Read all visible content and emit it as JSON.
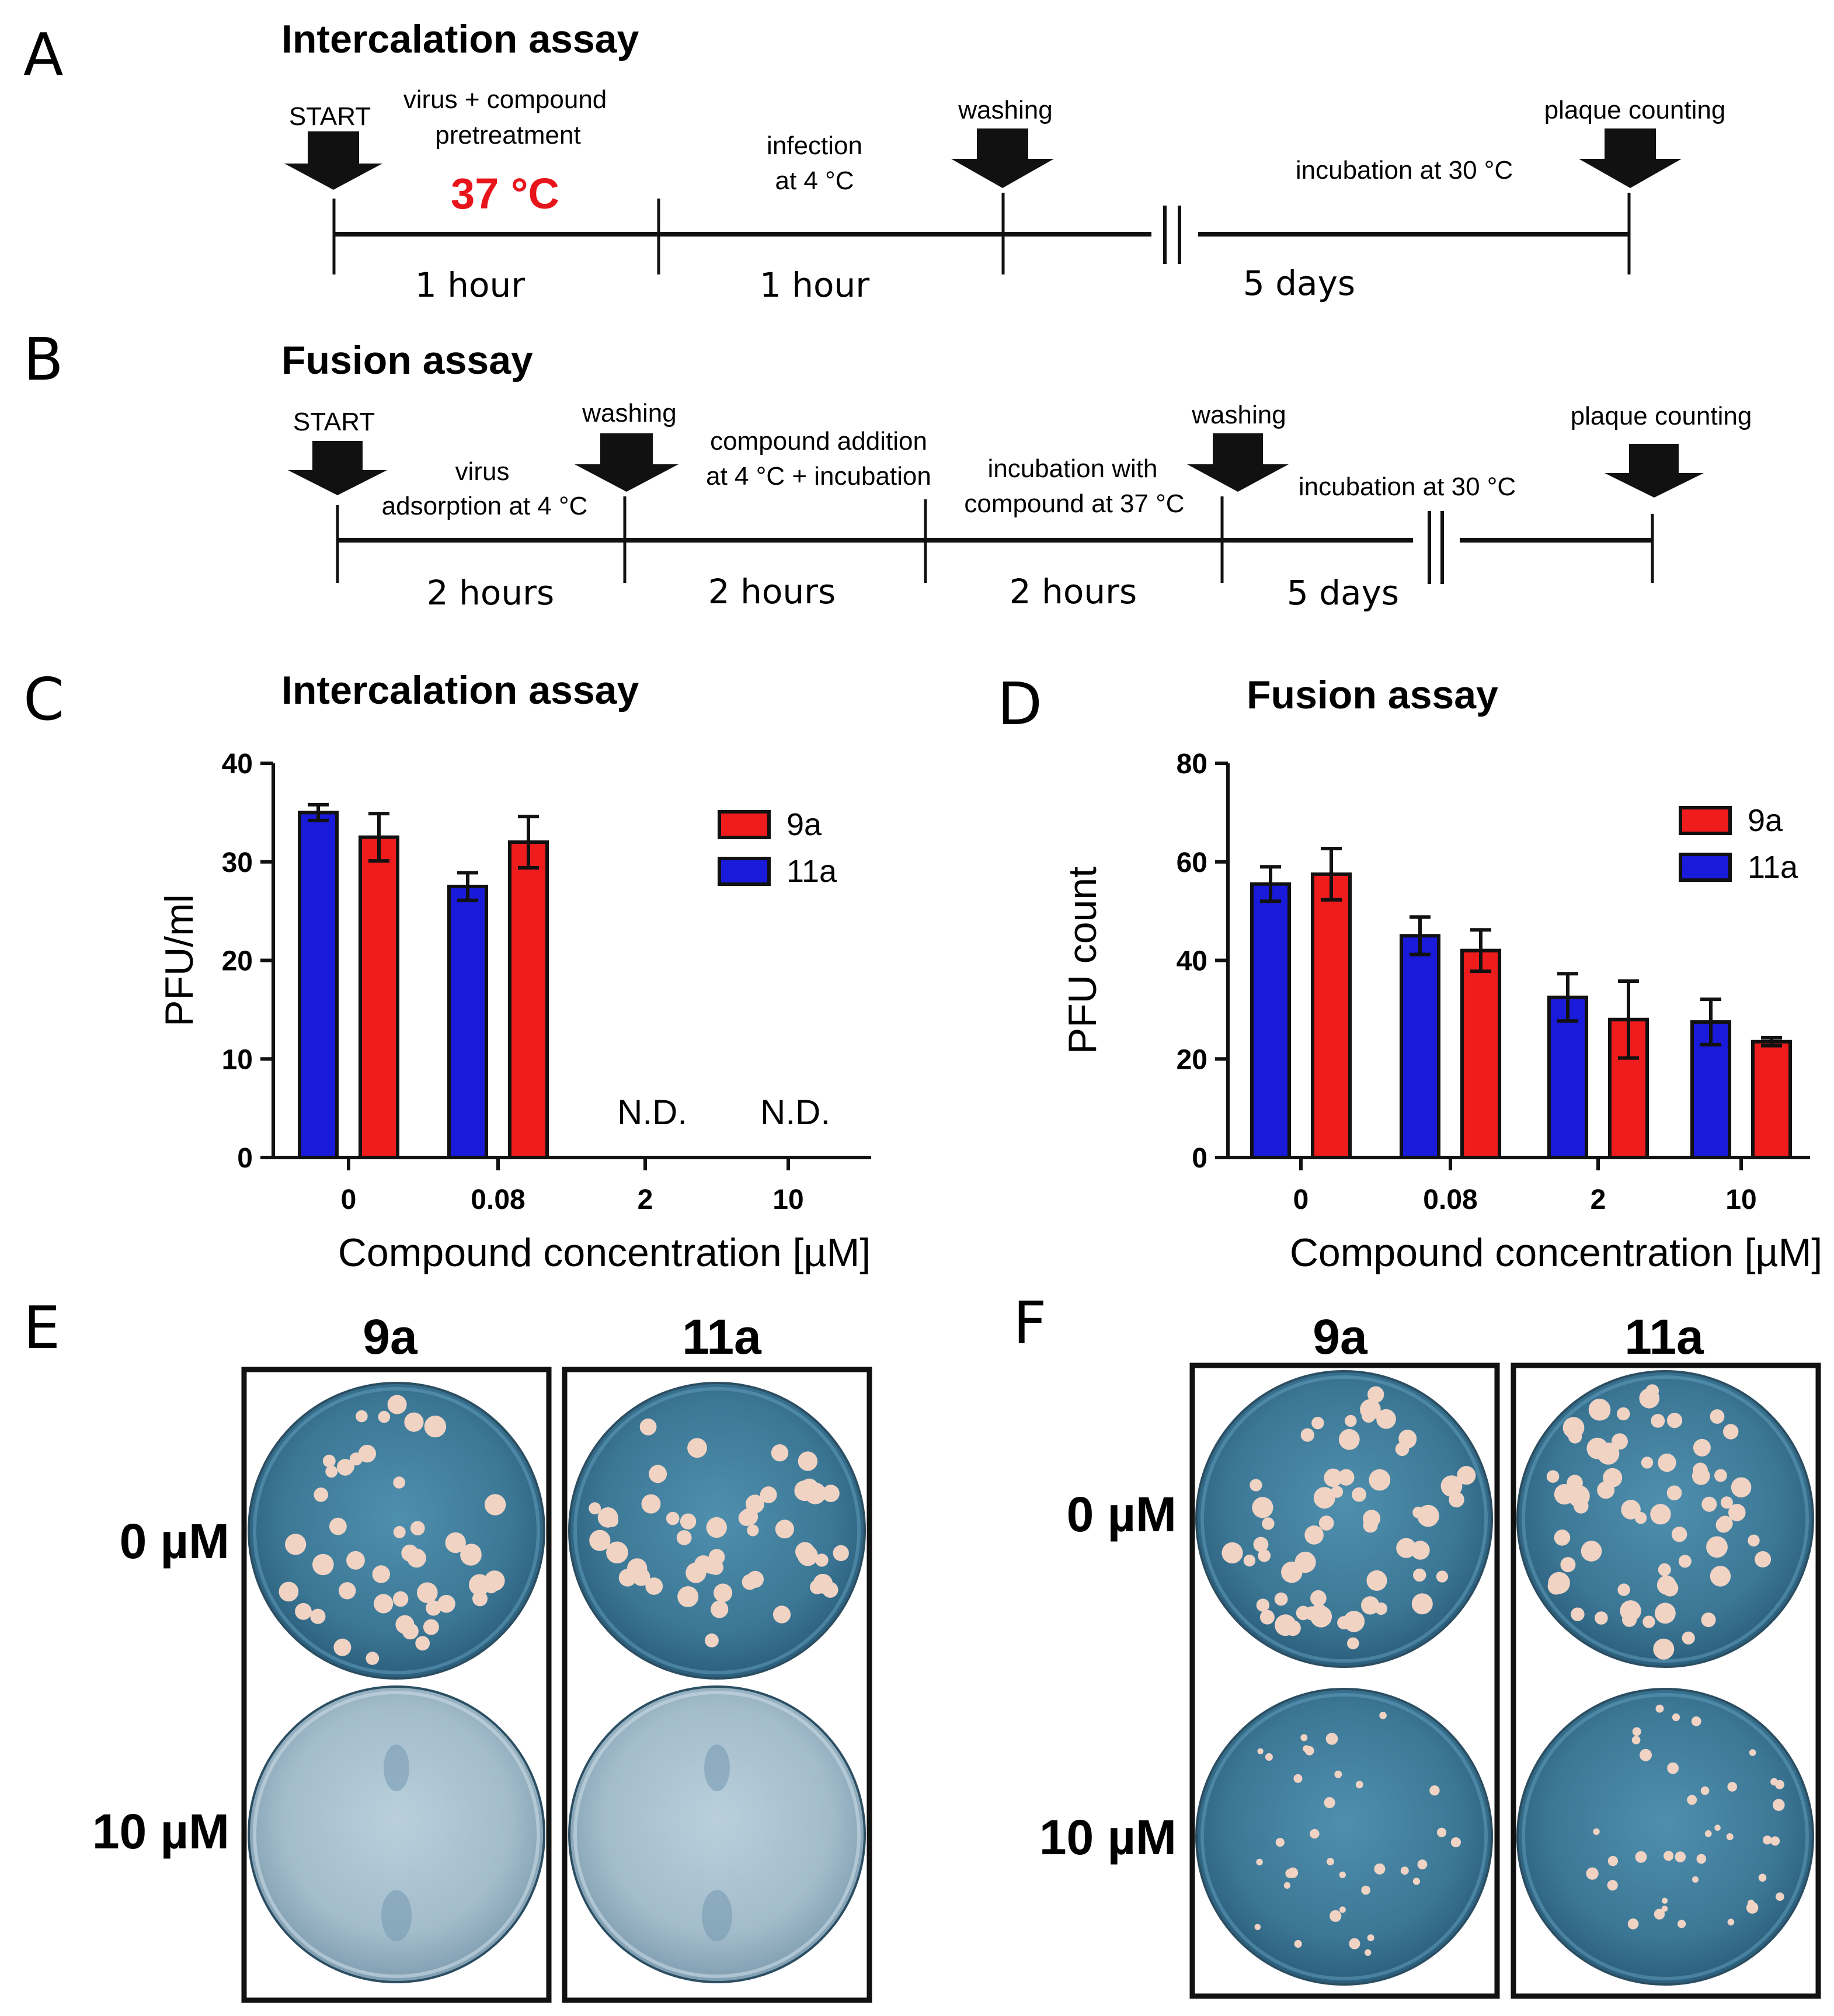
{
  "colors": {
    "red": "#ee1c1c",
    "blue": "#1a1adb",
    "dish": "#3f7fa0",
    "accent": "#e8141b"
  },
  "panels": {
    "A": {
      "letter": "A",
      "title": "Intercalation assay",
      "labels": {
        "start": "START",
        "pretreat1": "virus + compound",
        "pretreat2": "pretreatment",
        "temp": "37 °C",
        "infection1": "infection",
        "infection2": "at 4 °C",
        "washing": "washing",
        "incubation": "incubation at 30 °C",
        "plaque": "plaque counting"
      },
      "durations": [
        "1 hour",
        "1 hour",
        "5 days"
      ]
    },
    "B": {
      "letter": "B",
      "title": "Fusion assay",
      "labels": {
        "start": "START",
        "adsorb1": "virus",
        "adsorb2": "adsorption at 4 °C",
        "washing1": "washing",
        "addition1": "compound addition",
        "addition2": "at 4 °C + incubation",
        "incwith1": "incubation with",
        "incwith2": "compound at 37 °C",
        "washing2": "washing",
        "incubation": "incubation at 30 °C",
        "plaque": "plaque counting"
      },
      "durations": [
        "2 hours",
        "2 hours",
        "2 hours",
        "5 days"
      ]
    },
    "C": {
      "letter": "C",
      "title": "Intercalation assay",
      "nd": "N.D."
    },
    "D": {
      "letter": "D",
      "title": "Fusion assay"
    },
    "E": {
      "letter": "E",
      "cols": [
        "9a",
        "11a"
      ],
      "rows": [
        "0 µM",
        "10 µM"
      ]
    },
    "F": {
      "letter": "F",
      "cols": [
        "9a",
        "11a"
      ],
      "rows": [
        "0 µM",
        "10 µM"
      ]
    }
  },
  "chart_data": [
    {
      "type": "bar",
      "panel": "C",
      "title": "Intercalation assay",
      "categories": [
        "0",
        "0.08",
        "2",
        "10"
      ],
      "xlabel": "Compound concentration [µM]",
      "ylabel": "PFU/ml",
      "ylim": [
        0,
        40
      ],
      "yticks": [
        0,
        10,
        20,
        30,
        40
      ],
      "legend": [
        "9a",
        "11a"
      ],
      "legend_position": "top-right",
      "series": [
        {
          "name": "11a",
          "values": [
            35,
            27.5,
            null,
            null
          ],
          "err": [
            0.8,
            1.4,
            null,
            null
          ]
        },
        {
          "name": "9a",
          "values": [
            32.5,
            32,
            null,
            null
          ],
          "err": [
            2.4,
            2.6,
            null,
            null
          ]
        }
      ],
      "annotations": [
        {
          "category": "2",
          "text": "N.D."
        },
        {
          "category": "10",
          "text": "N.D."
        }
      ]
    },
    {
      "type": "bar",
      "panel": "D",
      "title": "Fusion assay",
      "categories": [
        "0",
        "0.08",
        "2",
        "10"
      ],
      "xlabel": "Compound concentration [µM]",
      "ylabel": "PFU count",
      "ylim": [
        0,
        80
      ],
      "yticks": [
        0,
        20,
        40,
        60,
        80
      ],
      "legend": [
        "9a",
        "11a"
      ],
      "legend_position": "top-right",
      "series": [
        {
          "name": "11a",
          "values": [
            55.5,
            45,
            32.5,
            27.5
          ],
          "err": [
            3.5,
            3.8,
            4.8,
            4.6
          ]
        },
        {
          "name": "9a",
          "values": [
            57.5,
            42,
            28,
            23.5
          ],
          "err": [
            5.2,
            4.2,
            7.8,
            0.8
          ]
        }
      ]
    }
  ]
}
